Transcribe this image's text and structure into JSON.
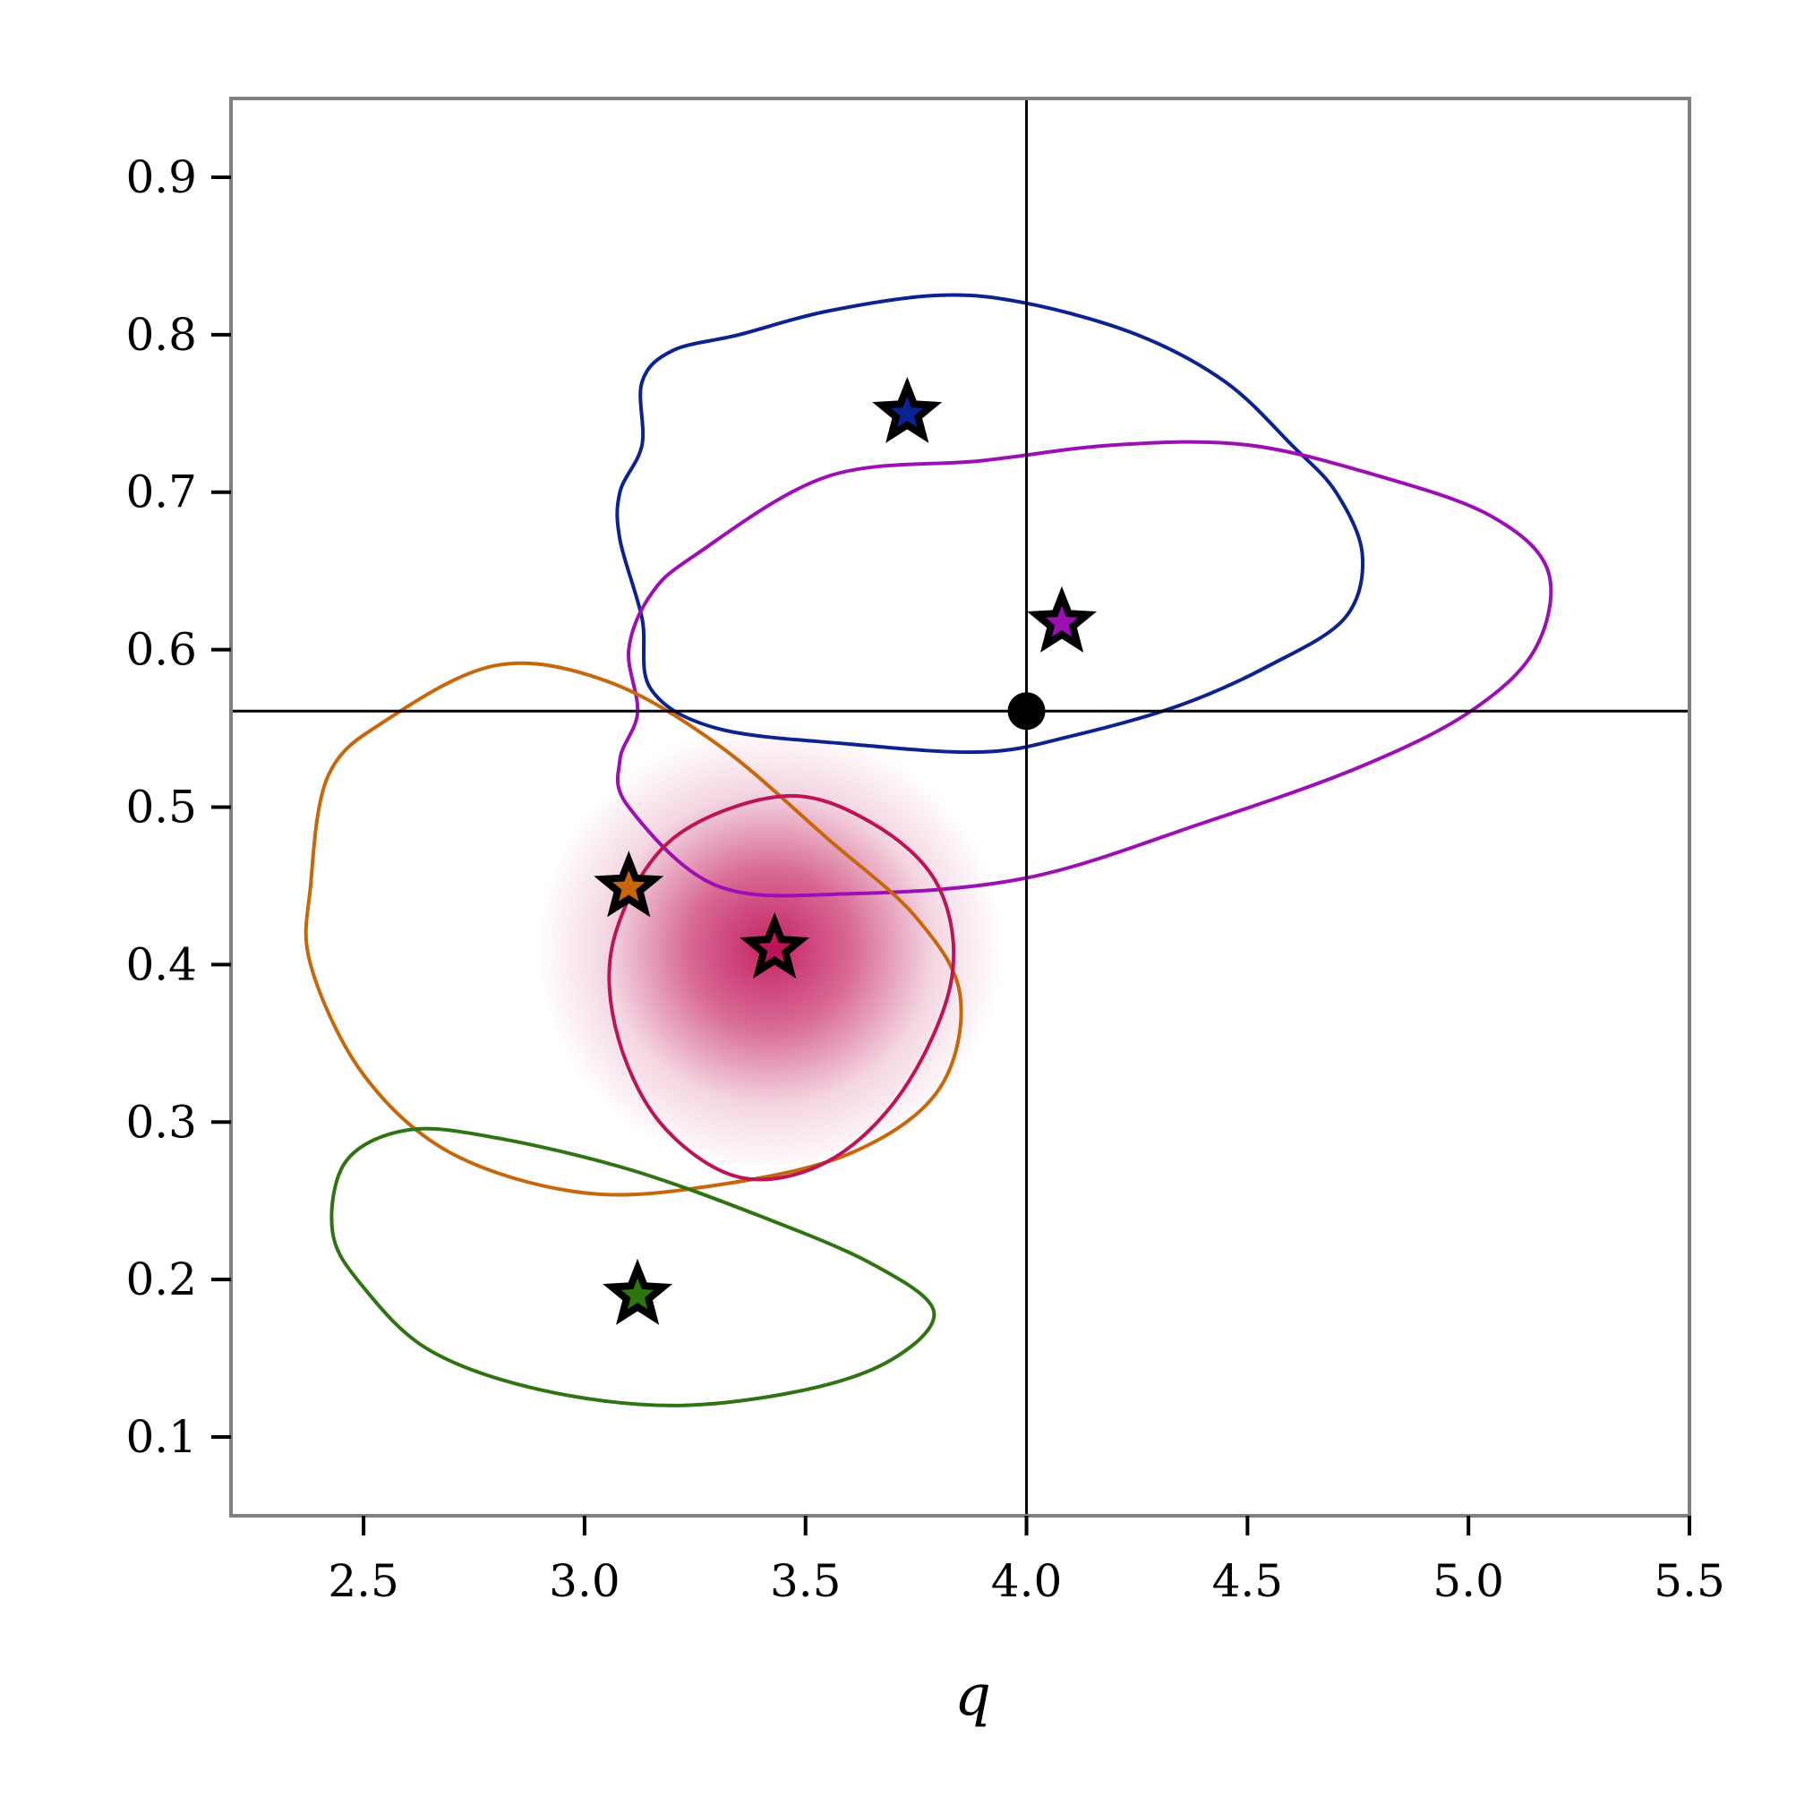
{
  "chart_data": {
    "type": "scatter",
    "xlabel": "q",
    "ylabel": "",
    "xlim": [
      2.2,
      5.5
    ],
    "ylim": [
      0.05,
      0.95
    ],
    "xticks": [
      "2.5",
      "3.0",
      "3.5",
      "4.0",
      "4.5",
      "5.0",
      "5.5"
    ],
    "yticks": [
      "0.1",
      "0.2",
      "0.3",
      "0.4",
      "0.5",
      "0.6",
      "0.7",
      "0.8",
      "0.9"
    ],
    "grid": false,
    "reference": {
      "x": 4.0,
      "y": 0.561
    },
    "density": {
      "center": [
        3.42,
        0.41
      ],
      "color": "#c2185b"
    },
    "series": [
      {
        "color": "#0a2390",
        "star": [
          3.73,
          0.75
        ],
        "contour": [
          [
            3.35,
            0.8
          ],
          [
            3.55,
            0.815
          ],
          [
            3.8,
            0.825
          ],
          [
            4.0,
            0.82
          ],
          [
            4.25,
            0.8
          ],
          [
            4.45,
            0.77
          ],
          [
            4.6,
            0.73
          ],
          [
            4.7,
            0.7
          ],
          [
            4.76,
            0.66
          ],
          [
            4.72,
            0.62
          ],
          [
            4.55,
            0.59
          ],
          [
            4.35,
            0.565
          ],
          [
            4.1,
            0.545
          ],
          [
            3.9,
            0.535
          ],
          [
            3.6,
            0.54
          ],
          [
            3.3,
            0.55
          ],
          [
            3.15,
            0.575
          ],
          [
            3.13,
            0.62
          ],
          [
            3.08,
            0.67
          ],
          [
            3.08,
            0.7
          ],
          [
            3.13,
            0.73
          ],
          [
            3.13,
            0.77
          ],
          [
            3.2,
            0.79
          ],
          [
            3.35,
            0.8
          ]
        ]
      },
      {
        "color": "#9c0fb5",
        "star": [
          4.08,
          0.617
        ],
        "contour": [
          [
            3.25,
            0.66
          ],
          [
            3.55,
            0.71
          ],
          [
            3.9,
            0.72
          ],
          [
            4.2,
            0.73
          ],
          [
            4.5,
            0.73
          ],
          [
            4.8,
            0.71
          ],
          [
            5.05,
            0.685
          ],
          [
            5.18,
            0.65
          ],
          [
            5.15,
            0.6
          ],
          [
            5.0,
            0.56
          ],
          [
            4.75,
            0.525
          ],
          [
            4.4,
            0.49
          ],
          [
            4.0,
            0.455
          ],
          [
            3.6,
            0.445
          ],
          [
            3.3,
            0.45
          ],
          [
            3.1,
            0.5
          ],
          [
            3.08,
            0.53
          ],
          [
            3.12,
            0.56
          ],
          [
            3.1,
            0.6
          ],
          [
            3.15,
            0.635
          ],
          [
            3.25,
            0.66
          ]
        ]
      },
      {
        "color": "#c8660a",
        "star": [
          3.1,
          0.449
        ],
        "contour": [
          [
            2.55,
            0.555
          ],
          [
            2.8,
            0.59
          ],
          [
            3.05,
            0.58
          ],
          [
            3.3,
            0.54
          ],
          [
            3.55,
            0.48
          ],
          [
            3.75,
            0.43
          ],
          [
            3.85,
            0.38
          ],
          [
            3.8,
            0.32
          ],
          [
            3.6,
            0.28
          ],
          [
            3.3,
            0.26
          ],
          [
            3.0,
            0.255
          ],
          [
            2.7,
            0.28
          ],
          [
            2.5,
            0.33
          ],
          [
            2.38,
            0.4
          ],
          [
            2.38,
            0.45
          ],
          [
            2.42,
            0.52
          ],
          [
            2.55,
            0.555
          ]
        ]
      },
      {
        "color": "#bc1456",
        "star": [
          3.43,
          0.41
        ],
        "contour": [
          [
            3.2,
            0.48
          ],
          [
            3.45,
            0.507
          ],
          [
            3.65,
            0.49
          ],
          [
            3.8,
            0.45
          ],
          [
            3.83,
            0.39
          ],
          [
            3.72,
            0.32
          ],
          [
            3.55,
            0.275
          ],
          [
            3.35,
            0.265
          ],
          [
            3.17,
            0.3
          ],
          [
            3.07,
            0.36
          ],
          [
            3.07,
            0.42
          ],
          [
            3.2,
            0.48
          ]
        ]
      },
      {
        "color": "#2e7410",
        "star": [
          3.12,
          0.19
        ],
        "contour": [
          [
            2.6,
            0.295
          ],
          [
            2.8,
            0.29
          ],
          [
            3.1,
            0.27
          ],
          [
            3.4,
            0.24
          ],
          [
            3.65,
            0.21
          ],
          [
            3.79,
            0.18
          ],
          [
            3.7,
            0.15
          ],
          [
            3.5,
            0.13
          ],
          [
            3.2,
            0.12
          ],
          [
            2.9,
            0.13
          ],
          [
            2.65,
            0.155
          ],
          [
            2.5,
            0.195
          ],
          [
            2.43,
            0.23
          ],
          [
            2.46,
            0.275
          ],
          [
            2.6,
            0.295
          ]
        ]
      }
    ]
  }
}
